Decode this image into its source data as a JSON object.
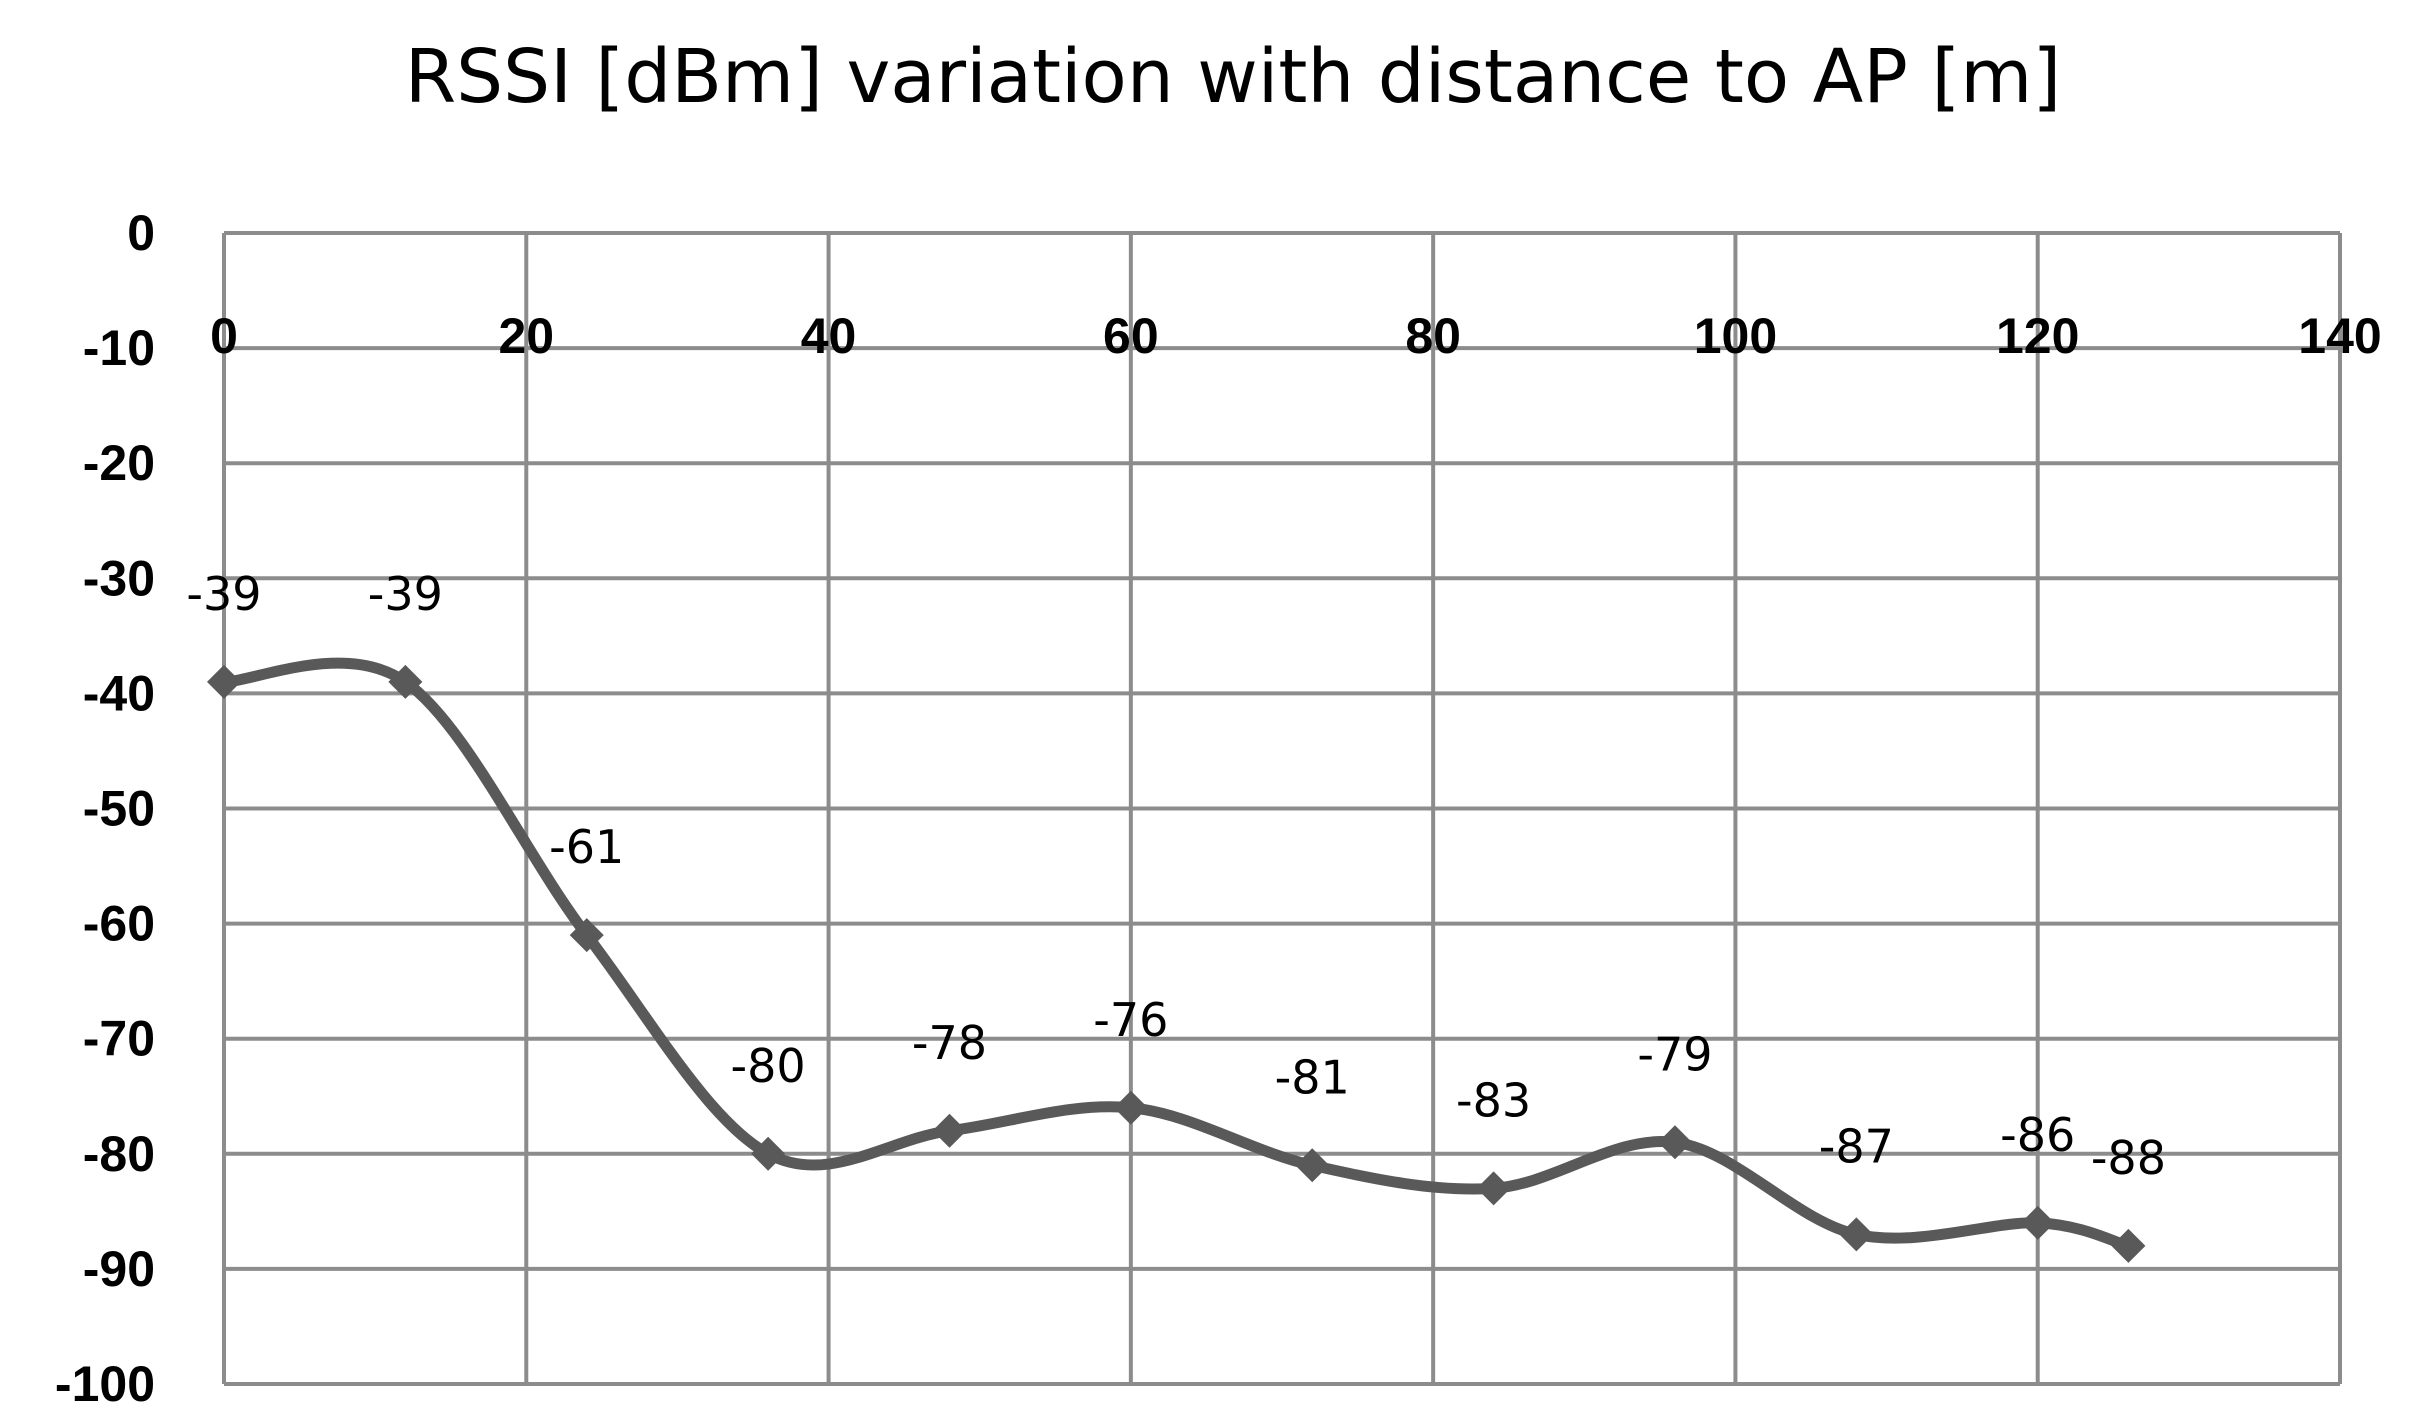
{
  "chart_data": {
    "type": "line",
    "title": "RSSI [dBm] variation with distance to AP [m]",
    "xlabel": "",
    "ylabel": "",
    "xlim": [
      0,
      140
    ],
    "ylim": [
      -100,
      0
    ],
    "x_ticks": [
      0,
      20,
      40,
      60,
      80,
      100,
      120,
      140
    ],
    "y_ticks": [
      0,
      -10,
      -20,
      -30,
      -40,
      -50,
      -60,
      -70,
      -80,
      -90,
      -100
    ],
    "x_axis_position": "top",
    "grid": true,
    "legend": "none",
    "smooth": true,
    "series": [
      {
        "color": "#595959",
        "marker": "diamond",
        "x": [
          0,
          12,
          24,
          36,
          48,
          60,
          72,
          84,
          96,
          108,
          120,
          126
        ],
        "values": [
          -39,
          -39,
          -61,
          -80,
          -78,
          -76,
          -81,
          -83,
          -79,
          -87,
          -86,
          -88
        ],
        "data_labels": [
          "-39",
          "-39",
          "-61",
          "-80",
          "-78",
          "-76",
          "-81",
          "-83",
          "-79",
          "-87",
          "-86",
          "-88"
        ]
      }
    ]
  }
}
